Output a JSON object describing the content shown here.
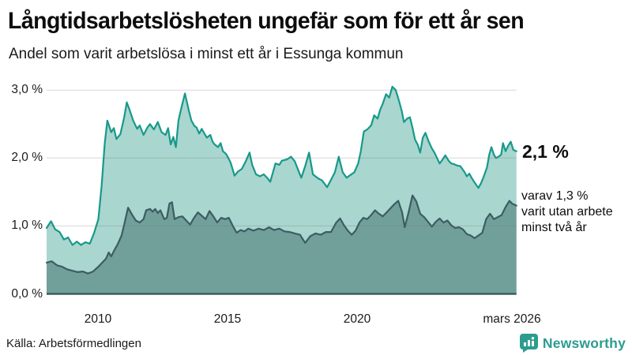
{
  "header": {
    "title": "Långtidsarbetslösheten ungefär som för ett år sen",
    "subtitle": "Andel som varit arbetslösa i minst ett år i Essunga kommun"
  },
  "chart_data": {
    "type": "area",
    "title": "Långtidsarbetslösheten ungefär som för ett år sen",
    "subtitle": "Andel som varit arbetslösa i minst ett år i Essunga kommun",
    "x_range": [
      2008.0,
      2026.17
    ],
    "y_range": [
      0,
      3.2
    ],
    "grid": true,
    "y_grid_values": [
      1,
      2,
      3
    ],
    "y_tick_values": [
      3,
      2,
      1,
      0
    ],
    "y_tick_labels": [
      "3,0 %",
      "2,0 %",
      "1,0 %",
      "0,0 %"
    ],
    "x_tick_years": [
      2010,
      2015,
      2020,
      2026.0
    ],
    "x_tick_labels": [
      "2010",
      "2015",
      "2020",
      "mars 2026"
    ],
    "series": [
      {
        "name": "Andel arbetslösa minst ett år",
        "line_color": "#17998a",
        "fill_color": "#a9d6cf",
        "end_value": "2,1 %",
        "points": [
          [
            2008.0,
            0.97
          ],
          [
            2008.17,
            1.07
          ],
          [
            2008.33,
            0.95
          ],
          [
            2008.5,
            0.91
          ],
          [
            2008.67,
            0.8
          ],
          [
            2008.83,
            0.83
          ],
          [
            2009.0,
            0.72
          ],
          [
            2009.17,
            0.77
          ],
          [
            2009.33,
            0.72
          ],
          [
            2009.5,
            0.76
          ],
          [
            2009.67,
            0.74
          ],
          [
            2009.83,
            0.89
          ],
          [
            2010.0,
            1.1
          ],
          [
            2010.13,
            1.6
          ],
          [
            2010.25,
            2.22
          ],
          [
            2010.35,
            2.55
          ],
          [
            2010.5,
            2.38
          ],
          [
            2010.6,
            2.44
          ],
          [
            2010.7,
            2.28
          ],
          [
            2010.85,
            2.35
          ],
          [
            2011.0,
            2.6
          ],
          [
            2011.1,
            2.82
          ],
          [
            2011.2,
            2.72
          ],
          [
            2011.35,
            2.55
          ],
          [
            2011.5,
            2.43
          ],
          [
            2011.6,
            2.48
          ],
          [
            2011.75,
            2.34
          ],
          [
            2011.9,
            2.45
          ],
          [
            2012.0,
            2.5
          ],
          [
            2012.15,
            2.42
          ],
          [
            2012.3,
            2.53
          ],
          [
            2012.45,
            2.38
          ],
          [
            2012.6,
            2.34
          ],
          [
            2012.7,
            2.44
          ],
          [
            2012.8,
            2.2
          ],
          [
            2012.9,
            2.31
          ],
          [
            2013.0,
            2.16
          ],
          [
            2013.1,
            2.55
          ],
          [
            2013.2,
            2.72
          ],
          [
            2013.35,
            2.95
          ],
          [
            2013.5,
            2.7
          ],
          [
            2013.6,
            2.55
          ],
          [
            2013.72,
            2.47
          ],
          [
            2013.8,
            2.45
          ],
          [
            2013.9,
            2.36
          ],
          [
            2014.0,
            2.43
          ],
          [
            2014.1,
            2.36
          ],
          [
            2014.2,
            2.3
          ],
          [
            2014.33,
            2.34
          ],
          [
            2014.42,
            2.24
          ],
          [
            2014.5,
            2.2
          ],
          [
            2014.63,
            2.16
          ],
          [
            2014.73,
            2.22
          ],
          [
            2014.82,
            2.1
          ],
          [
            2014.94,
            2.06
          ],
          [
            2015.03,
            2.0
          ],
          [
            2015.12,
            1.93
          ],
          [
            2015.27,
            1.74
          ],
          [
            2015.4,
            1.8
          ],
          [
            2015.55,
            1.84
          ],
          [
            2015.7,
            1.95
          ],
          [
            2015.85,
            2.08
          ],
          [
            2015.95,
            1.9
          ],
          [
            2016.1,
            1.76
          ],
          [
            2016.25,
            1.73
          ],
          [
            2016.4,
            1.76
          ],
          [
            2016.55,
            1.7
          ],
          [
            2016.65,
            1.65
          ],
          [
            2016.85,
            1.92
          ],
          [
            2017.0,
            1.9
          ],
          [
            2017.1,
            1.96
          ],
          [
            2017.3,
            1.98
          ],
          [
            2017.45,
            2.02
          ],
          [
            2017.6,
            1.95
          ],
          [
            2017.7,
            1.85
          ],
          [
            2017.85,
            1.71
          ],
          [
            2018.0,
            1.88
          ],
          [
            2018.15,
            2.08
          ],
          [
            2018.3,
            1.76
          ],
          [
            2018.5,
            1.7
          ],
          [
            2018.65,
            1.67
          ],
          [
            2018.85,
            1.57
          ],
          [
            2019.0,
            1.68
          ],
          [
            2019.15,
            1.79
          ],
          [
            2019.3,
            2.02
          ],
          [
            2019.45,
            1.79
          ],
          [
            2019.6,
            1.71
          ],
          [
            2019.75,
            1.75
          ],
          [
            2019.9,
            1.79
          ],
          [
            2020.05,
            1.92
          ],
          [
            2020.15,
            2.1
          ],
          [
            2020.27,
            2.39
          ],
          [
            2020.4,
            2.42
          ],
          [
            2020.55,
            2.48
          ],
          [
            2020.67,
            2.63
          ],
          [
            2020.8,
            2.58
          ],
          [
            2020.9,
            2.71
          ],
          [
            2021.0,
            2.8
          ],
          [
            2021.13,
            2.94
          ],
          [
            2021.25,
            2.89
          ],
          [
            2021.37,
            3.05
          ],
          [
            2021.5,
            3.0
          ],
          [
            2021.6,
            2.88
          ],
          [
            2021.73,
            2.7
          ],
          [
            2021.82,
            2.53
          ],
          [
            2021.94,
            2.58
          ],
          [
            2022.05,
            2.6
          ],
          [
            2022.15,
            2.45
          ],
          [
            2022.25,
            2.27
          ],
          [
            2022.35,
            2.2
          ],
          [
            2022.45,
            2.08
          ],
          [
            2022.55,
            2.3
          ],
          [
            2022.65,
            2.37
          ],
          [
            2022.77,
            2.25
          ],
          [
            2022.9,
            2.14
          ],
          [
            2023.0,
            2.08
          ],
          [
            2023.1,
            2.0
          ],
          [
            2023.2,
            1.92
          ],
          [
            2023.32,
            1.98
          ],
          [
            2023.42,
            2.04
          ],
          [
            2023.55,
            1.96
          ],
          [
            2023.65,
            1.92
          ],
          [
            2023.75,
            1.91
          ],
          [
            2023.87,
            1.89
          ],
          [
            2024.0,
            1.88
          ],
          [
            2024.15,
            1.8
          ],
          [
            2024.25,
            1.73
          ],
          [
            2024.35,
            1.77
          ],
          [
            2024.45,
            1.7
          ],
          [
            2024.55,
            1.64
          ],
          [
            2024.7,
            1.56
          ],
          [
            2024.8,
            1.63
          ],
          [
            2024.9,
            1.72
          ],
          [
            2025.03,
            1.86
          ],
          [
            2025.12,
            2.05
          ],
          [
            2025.2,
            2.16
          ],
          [
            2025.3,
            2.05
          ],
          [
            2025.38,
            2.0
          ],
          [
            2025.48,
            2.02
          ],
          [
            2025.58,
            2.05
          ],
          [
            2025.65,
            2.22
          ],
          [
            2025.75,
            2.1
          ],
          [
            2025.85,
            2.18
          ],
          [
            2025.95,
            2.24
          ],
          [
            2026.05,
            2.12
          ],
          [
            2026.17,
            2.1
          ]
        ]
      },
      {
        "name": "varav utan arbete minst två år",
        "line_color": "#3d5c62",
        "fill_color": "#71a09b",
        "end_value": "1,3 %",
        "points": [
          [
            2008.0,
            0.46
          ],
          [
            2008.2,
            0.48
          ],
          [
            2008.4,
            0.42
          ],
          [
            2008.6,
            0.4
          ],
          [
            2008.8,
            0.36
          ],
          [
            2009.0,
            0.34
          ],
          [
            2009.2,
            0.32
          ],
          [
            2009.4,
            0.33
          ],
          [
            2009.6,
            0.3
          ],
          [
            2009.8,
            0.33
          ],
          [
            2010.0,
            0.4
          ],
          [
            2010.15,
            0.46
          ],
          [
            2010.3,
            0.52
          ],
          [
            2010.4,
            0.61
          ],
          [
            2010.5,
            0.55
          ],
          [
            2010.6,
            0.63
          ],
          [
            2010.75,
            0.73
          ],
          [
            2010.9,
            0.86
          ],
          [
            2011.0,
            1.02
          ],
          [
            2011.15,
            1.27
          ],
          [
            2011.3,
            1.17
          ],
          [
            2011.45,
            1.08
          ],
          [
            2011.6,
            1.05
          ],
          [
            2011.75,
            1.1
          ],
          [
            2011.85,
            1.23
          ],
          [
            2012.0,
            1.25
          ],
          [
            2012.1,
            1.21
          ],
          [
            2012.2,
            1.25
          ],
          [
            2012.3,
            1.19
          ],
          [
            2012.4,
            1.23
          ],
          [
            2012.55,
            1.1
          ],
          [
            2012.65,
            1.12
          ],
          [
            2012.75,
            1.33
          ],
          [
            2012.85,
            1.35
          ],
          [
            2012.95,
            1.1
          ],
          [
            2013.1,
            1.13
          ],
          [
            2013.25,
            1.14
          ],
          [
            2013.4,
            1.08
          ],
          [
            2013.55,
            1.02
          ],
          [
            2013.7,
            1.12
          ],
          [
            2013.85,
            1.2
          ],
          [
            2014.0,
            1.15
          ],
          [
            2014.15,
            1.1
          ],
          [
            2014.3,
            1.22
          ],
          [
            2014.45,
            1.14
          ],
          [
            2014.6,
            1.05
          ],
          [
            2014.75,
            1.12
          ],
          [
            2014.9,
            1.1
          ],
          [
            2015.05,
            1.12
          ],
          [
            2015.2,
            1.0
          ],
          [
            2015.35,
            0.9
          ],
          [
            2015.5,
            0.94
          ],
          [
            2015.65,
            0.92
          ],
          [
            2015.8,
            0.96
          ],
          [
            2016.0,
            0.93
          ],
          [
            2016.2,
            0.96
          ],
          [
            2016.4,
            0.94
          ],
          [
            2016.6,
            0.98
          ],
          [
            2016.8,
            0.94
          ],
          [
            2017.0,
            0.96
          ],
          [
            2017.2,
            0.92
          ],
          [
            2017.4,
            0.91
          ],
          [
            2017.6,
            0.89
          ],
          [
            2017.8,
            0.87
          ],
          [
            2018.0,
            0.75
          ],
          [
            2018.2,
            0.85
          ],
          [
            2018.4,
            0.89
          ],
          [
            2018.6,
            0.87
          ],
          [
            2018.8,
            0.91
          ],
          [
            2019.0,
            0.91
          ],
          [
            2019.2,
            1.05
          ],
          [
            2019.35,
            1.11
          ],
          [
            2019.5,
            1.01
          ],
          [
            2019.65,
            0.93
          ],
          [
            2019.8,
            0.87
          ],
          [
            2019.95,
            0.93
          ],
          [
            2020.1,
            1.05
          ],
          [
            2020.25,
            1.12
          ],
          [
            2020.4,
            1.1
          ],
          [
            2020.55,
            1.16
          ],
          [
            2020.7,
            1.23
          ],
          [
            2020.85,
            1.18
          ],
          [
            2021.0,
            1.14
          ],
          [
            2021.15,
            1.2
          ],
          [
            2021.3,
            1.26
          ],
          [
            2021.45,
            1.32
          ],
          [
            2021.6,
            1.37
          ],
          [
            2021.75,
            1.2
          ],
          [
            2021.85,
            0.98
          ],
          [
            2022.0,
            1.2
          ],
          [
            2022.15,
            1.45
          ],
          [
            2022.3,
            1.36
          ],
          [
            2022.45,
            1.18
          ],
          [
            2022.6,
            1.13
          ],
          [
            2022.75,
            1.06
          ],
          [
            2022.9,
            0.99
          ],
          [
            2023.05,
            1.06
          ],
          [
            2023.2,
            1.11
          ],
          [
            2023.35,
            1.05
          ],
          [
            2023.5,
            1.08
          ],
          [
            2023.65,
            1.01
          ],
          [
            2023.8,
            0.97
          ],
          [
            2023.95,
            0.98
          ],
          [
            2024.1,
            0.95
          ],
          [
            2024.25,
            0.88
          ],
          [
            2024.4,
            0.86
          ],
          [
            2024.55,
            0.82
          ],
          [
            2024.7,
            0.86
          ],
          [
            2024.85,
            0.9
          ],
          [
            2025.0,
            1.1
          ],
          [
            2025.15,
            1.18
          ],
          [
            2025.3,
            1.1
          ],
          [
            2025.45,
            1.13
          ],
          [
            2025.6,
            1.16
          ],
          [
            2025.75,
            1.28
          ],
          [
            2025.9,
            1.37
          ],
          [
            2026.0,
            1.33
          ],
          [
            2026.17,
            1.3
          ]
        ]
      }
    ],
    "annotations": {
      "total_label": "2,1 %",
      "subset_lines": [
        "varav 1,3 %",
        "varit utan arbete",
        "minst två år"
      ]
    }
  },
  "footer": {
    "source": "Källa: Arbetsförmedlingen",
    "brand": "Newsworthy"
  },
  "colors": {
    "accent_teal": "#17998a",
    "light_fill": "#a9d6cf",
    "dark_line": "#3d5c62",
    "dark_fill": "#71a09b",
    "gridline": "#d8d8d8",
    "brand_teal": "#2b9c8f"
  }
}
